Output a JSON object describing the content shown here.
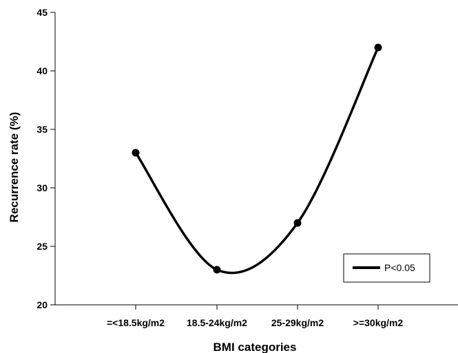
{
  "chart_data": {
    "type": "line",
    "categories": [
      "=<18.5kg/m2",
      "18.5-24kg/m2",
      "25-29kg/m2",
      ">=30kg/m2"
    ],
    "series": [
      {
        "name": "P<0.05",
        "values": [
          33,
          23,
          27,
          42
        ],
        "color": "#000000"
      }
    ],
    "title": "",
    "xlabel": "BMI categories",
    "ylabel": "Recurrence rate (%)",
    "ylim": [
      20,
      45
    ],
    "yticks": [
      20,
      25,
      30,
      35,
      40,
      45
    ],
    "grid": false,
    "legend_position": "bottom-right",
    "smooth": true,
    "markers": "filled-circle"
  }
}
